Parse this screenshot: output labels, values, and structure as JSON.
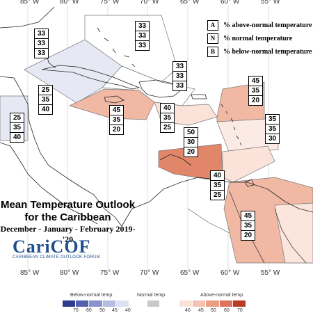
{
  "longitude_labels": [
    "85° W",
    "80° W",
    "75° W",
    "70° W",
    "65° W",
    "60° W",
    "55° W"
  ],
  "legend_key": [
    {
      "letter": "A",
      "text": "% above-normal temperature"
    },
    {
      "letter": "N",
      "text": "% normal temperature"
    },
    {
      "letter": "B",
      "text": "% below-normal temperature"
    }
  ],
  "regions": [
    {
      "id": "bahamas",
      "probs": [
        "33",
        "33",
        "33"
      ],
      "color": "#ffffff"
    },
    {
      "id": "cuba",
      "probs": [
        "33",
        "33",
        "33"
      ],
      "color": "#ffffff"
    },
    {
      "id": "hispaniola",
      "probs": [
        "33",
        "33",
        "33"
      ],
      "color": "#ffffff"
    },
    {
      "id": "belize",
      "probs": [
        "25",
        "35",
        "40"
      ],
      "color": "#e6e9f4"
    },
    {
      "id": "honduras",
      "probs": [
        "25",
        "35",
        "40"
      ],
      "color": "#e6e9f4"
    },
    {
      "id": "jamaica",
      "probs": [
        "45",
        "35",
        "20"
      ],
      "color": "#f1b8a4"
    },
    {
      "id": "puerto-rico",
      "probs": [
        "40",
        "35",
        "25"
      ],
      "color": "#fbe3da"
    },
    {
      "id": "leewards",
      "probs": [
        "45",
        "35",
        "20"
      ],
      "color": "#f1b8a4"
    },
    {
      "id": "windwards",
      "probs": [
        "35",
        "35",
        "30"
      ],
      "color": "#fcebe5"
    },
    {
      "id": "southern-caribbean",
      "probs": [
        "50",
        "30",
        "20"
      ],
      "color": "#e2866a"
    },
    {
      "id": "trinidad",
      "probs": [
        "40",
        "35",
        "25"
      ],
      "color": "#fbe3da"
    },
    {
      "id": "guianas",
      "probs": [
        "45",
        "35",
        "20"
      ],
      "color": "#f1b8a4"
    }
  ],
  "title_line1": "Mean Temperature Outlook",
  "title_line2": "for the Caribbean",
  "season": "December - January - February 2019-'20",
  "logo_text": "CariCOF",
  "logo_subtitle": "CARIBBEAN CLIMATE OUTLOOK FORUM",
  "colorbar": {
    "below_label": "Below-normal temp.",
    "normal_label": "Normal temp.",
    "above_label": "Above-normal temp.",
    "below_ticks": [
      "70",
      "60",
      "50",
      "45",
      "40"
    ],
    "above_ticks": [
      "40",
      "45",
      "50",
      "60",
      "70"
    ],
    "below_colors": [
      "#2e3a8c",
      "#5360b0",
      "#8a93cc",
      "#b7bde2",
      "#dfe2f2"
    ],
    "normal_color": "#c8c8c8",
    "above_colors": [
      "#fbe3da",
      "#f5c2b1",
      "#ec9d84",
      "#df7458",
      "#b83b2a"
    ]
  }
}
